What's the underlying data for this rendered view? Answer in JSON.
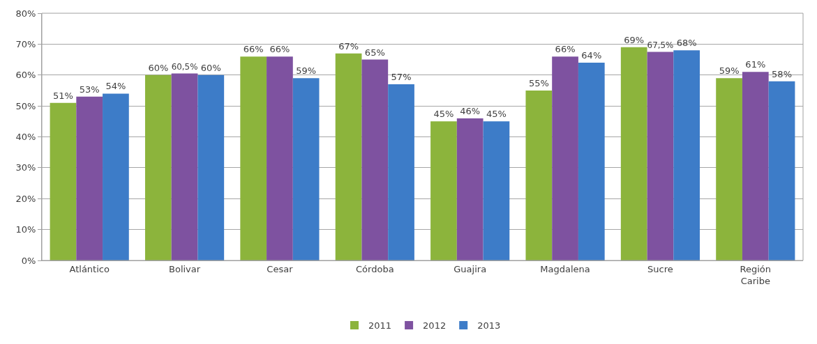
{
  "chart_data": {
    "type": "bar",
    "categories": [
      "Atlántico",
      "Bolivar",
      "Cesar",
      "Córdoba",
      "Guajira",
      "Magdalena",
      "Sucre",
      "Región Caribe"
    ],
    "series": [
      {
        "name": "2011",
        "color": "#8cb43c",
        "values": [
          51,
          60,
          66,
          67,
          45,
          55,
          69,
          59
        ],
        "value_labels": [
          "51%",
          "60%",
          "66%",
          "67%",
          "45%",
          "55%",
          "69%",
          "59%"
        ]
      },
      {
        "name": "2012",
        "color": "#7e52a0",
        "values": [
          53,
          60.5,
          66,
          65,
          46,
          66,
          67.5,
          61
        ],
        "value_labels": [
          "53%",
          "60,5%",
          "66%",
          "65%",
          "46%",
          "66%",
          "67,5%",
          "61%"
        ]
      },
      {
        "name": "2013",
        "color": "#3d7cc8",
        "values": [
          54,
          60,
          59,
          57,
          45,
          64,
          68,
          58
        ],
        "value_labels": [
          "54%",
          "60%",
          "59%",
          "57%",
          "45%",
          "64%",
          "68%",
          "58%"
        ]
      }
    ],
    "ylim": [
      0,
      80
    ],
    "yticks": [
      {
        "value": 0,
        "label": "0%"
      },
      {
        "value": 10,
        "label": "10%"
      },
      {
        "value": 20,
        "label": "20%"
      },
      {
        "value": 30,
        "label": "30%"
      },
      {
        "value": 40,
        "label": "40%"
      },
      {
        "value": 50,
        "label": "50%"
      },
      {
        "value": 60,
        "label": "60%"
      },
      {
        "value": 70,
        "label": "70%"
      },
      {
        "value": 80,
        "label": "80%"
      }
    ],
    "grid": "y",
    "legend": "bottom"
  }
}
